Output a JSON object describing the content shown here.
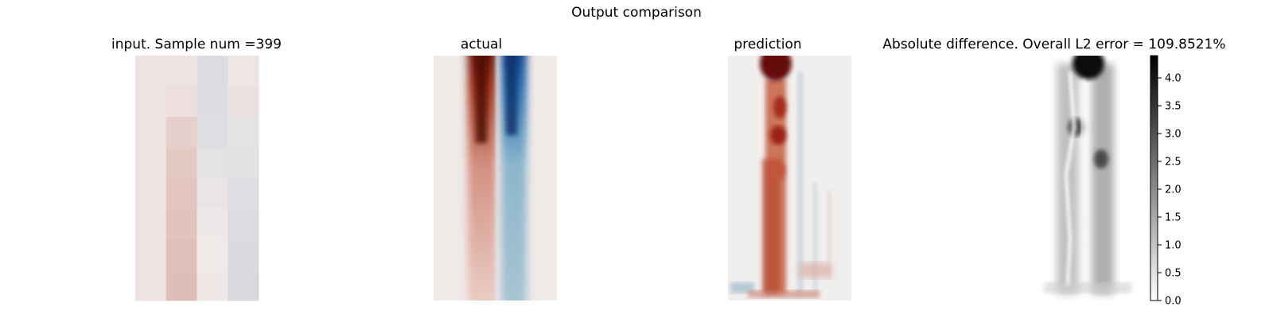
{
  "figure": {
    "suptitle": "Output comparison"
  },
  "panels": [
    {
      "title": "input. Sample num =399"
    },
    {
      "title": "actual"
    },
    {
      "title": "prediction"
    },
    {
      "title": "Absolute difference. Overall L2 error = 109.8521%"
    }
  ],
  "chart_data": [
    {
      "type": "heatmap",
      "title": "input. Sample num =399",
      "colormap": "diverging red-white-blue",
      "columns": 4,
      "rows": 8,
      "values": [
        [
          0.03,
          0.03,
          -0.08,
          0.02
        ],
        [
          0.03,
          0.05,
          -0.08,
          0.04
        ],
        [
          0.03,
          0.12,
          -0.07,
          -0.04
        ],
        [
          0.03,
          0.15,
          -0.05,
          -0.06
        ],
        [
          0.03,
          0.17,
          -0.03,
          -0.07
        ],
        [
          0.03,
          0.18,
          -0.01,
          -0.08
        ],
        [
          0.03,
          0.19,
          0.0,
          -0.09
        ],
        [
          0.03,
          0.2,
          0.01,
          -0.1
        ]
      ]
    },
    {
      "type": "heatmap",
      "title": "actual",
      "colormap": "diverging red-white-blue",
      "description_values": "two vertical bands: positive (red) band left of center, negative (blue) band right of center, strongest at the top and fading downward"
    },
    {
      "type": "heatmap",
      "title": "prediction",
      "colormap": "diverging red-white-blue",
      "description_values": "irregular red column on the left half with dark red blob at the top, faint blue streaks on the right"
    },
    {
      "type": "heatmap",
      "title": "Absolute difference. Overall L2 error = 109.8521%",
      "colormap": "grayscale (white=0, black=max)",
      "colorbar": {
        "min": 0.0,
        "max": 4.4,
        "ticks": [
          "0.0",
          "0.5",
          "1.0",
          "1.5",
          "2.0",
          "2.5",
          "3.0",
          "3.5",
          "4.0"
        ],
        "tick_values": [
          0.0,
          0.5,
          1.0,
          1.5,
          2.0,
          2.5,
          3.0,
          3.5,
          4.0
        ]
      }
    }
  ]
}
